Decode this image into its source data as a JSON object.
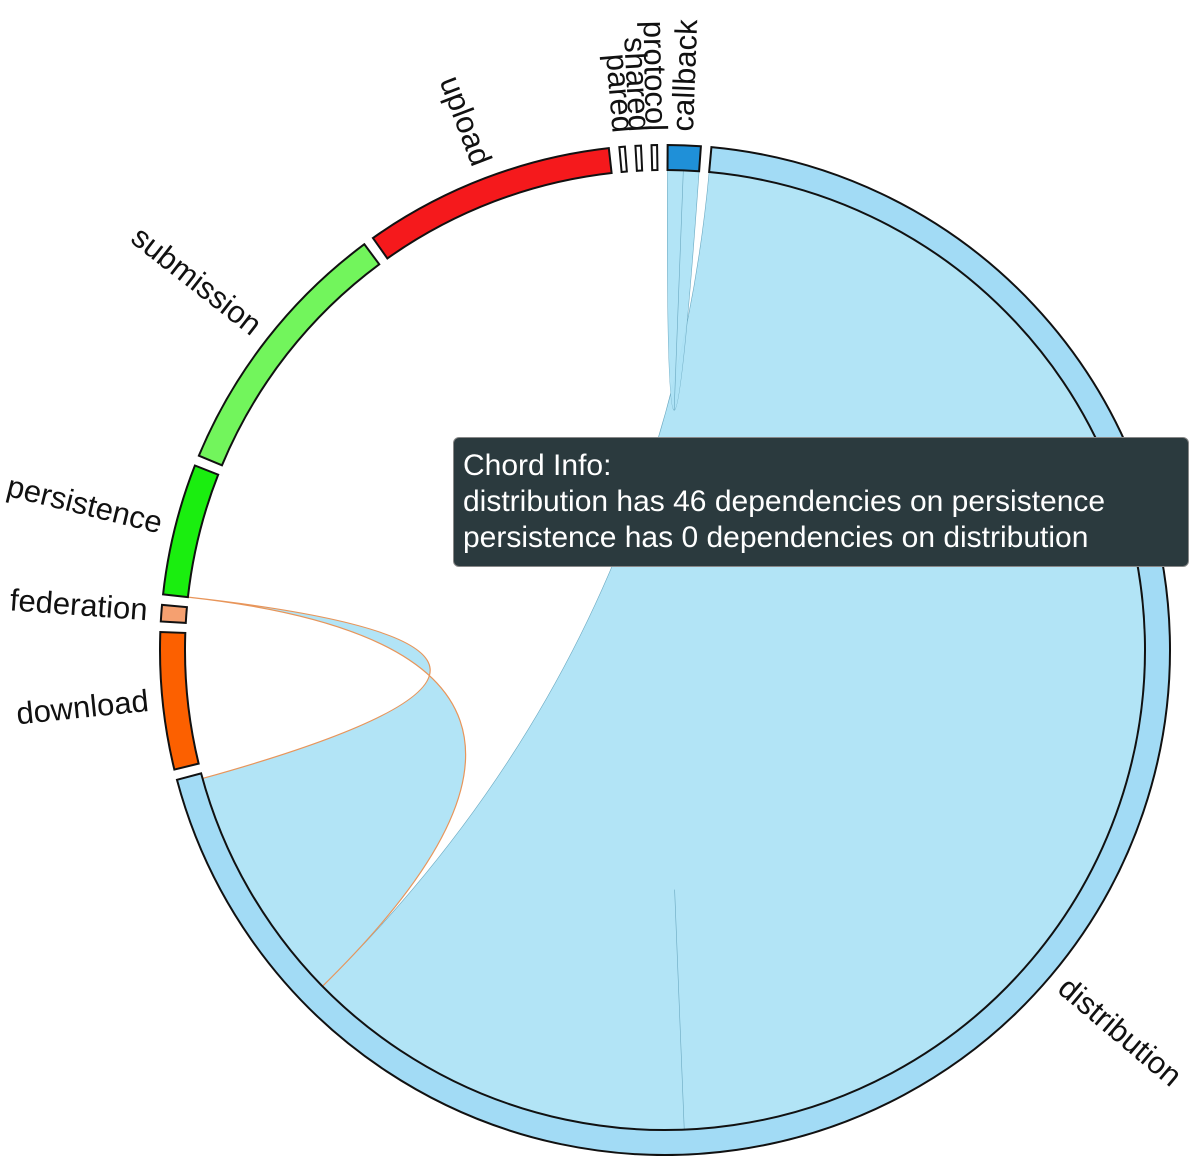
{
  "chart_data": {
    "type": "chord",
    "groups": [
      {
        "name": "callback",
        "color": "#1f90d8",
        "value": 6
      },
      {
        "name": "distribution",
        "color": "#a2dbf5",
        "value": 397
      },
      {
        "name": "download",
        "color": "#fc6000",
        "value": 25
      },
      {
        "name": "federation",
        "color": "#f5a070",
        "value": 3
      },
      {
        "name": "persistence",
        "color": "#1aee0f",
        "value": 24
      },
      {
        "name": "submission",
        "color": "#72f55c",
        "value": 49
      },
      {
        "name": "upload",
        "color": "#f5191c",
        "value": 46
      },
      {
        "name": "pared",
        "color": "#ffffff",
        "value": 1
      },
      {
        "name": "shared",
        "color": "#ffffff",
        "value": 1
      },
      {
        "name": "protocol",
        "color": "#ffffff",
        "value": 1
      }
    ],
    "chords": [
      {
        "source": "distribution",
        "target": "distribution",
        "source_value": 274,
        "target_value": 76,
        "color": "#aee3f5"
      },
      {
        "source": "distribution",
        "target": "persistence",
        "source_value": 46,
        "target_value": 0,
        "color": "#aee3f5"
      },
      {
        "source": "callback",
        "target": "callback",
        "source_value": 3,
        "target_value": 3,
        "color": "#aee3f5"
      }
    ],
    "tooltip": {
      "title": "Chord Info:",
      "lines": [
        "distribution has 46 dependencies on persistence",
        "persistence has 0 dependencies on distribution"
      ]
    }
  }
}
